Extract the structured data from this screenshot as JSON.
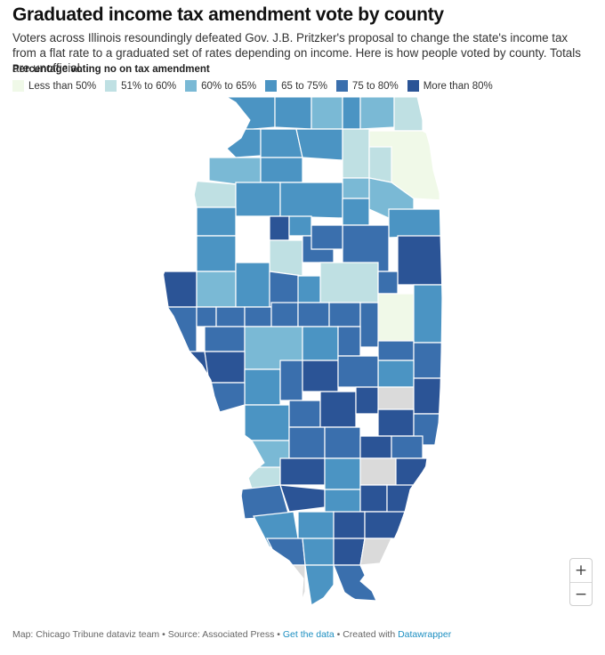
{
  "title": "Graduated income tax amendment vote by county",
  "description": "Voters across Illinois resoundingly defeated Gov. J.B. Pritzker's proposal to change the state's income tax from a flat rate to a graduated set of rates depending on income. Here is how people voted by county. Totals are unofficial.",
  "legend": {
    "title": "Percentage voting no on tax amendment",
    "items": [
      {
        "label": "Less than 50%",
        "color": "#f0f9e8"
      },
      {
        "label": "51% to 60%",
        "color": "#bfe0e3"
      },
      {
        "label": "60% to 65%",
        "color": "#7ab9d5"
      },
      {
        "label": "65 to 75%",
        "color": "#4b94c3"
      },
      {
        "label": "75 to 80%",
        "color": "#3a6fad"
      },
      {
        "label": "More than 80%",
        "color": "#2b5496"
      }
    ],
    "no_data_color": "#dadada"
  },
  "zoom": {
    "in_icon": "+",
    "out_icon": "−"
  },
  "footer": {
    "credit": "Map: Chicago Tribune dataviz team",
    "separator": "•",
    "source": "Source: Associated Press",
    "get_data": "Get the data",
    "created_with": "Created with",
    "datawrapper": "Datawrapper"
  }
}
